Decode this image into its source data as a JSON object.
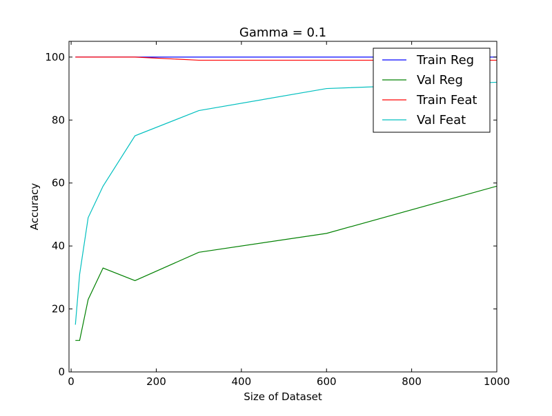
{
  "chart_data": {
    "type": "line",
    "title": "Gamma = 0.1",
    "xlabel": "Size of Dataset",
    "ylabel": "Accuracy",
    "xlim": [
      -5,
      1000
    ],
    "ylim": [
      0,
      105
    ],
    "xticks": [
      0,
      200,
      400,
      600,
      800,
      1000
    ],
    "yticks": [
      0,
      20,
      40,
      60,
      80,
      100
    ],
    "grid": false,
    "legend_position": "top-right",
    "series": [
      {
        "name": "Train Reg",
        "color": "#0000ff",
        "x": [
          10,
          20,
          40,
          75,
          150,
          300,
          600,
          1000
        ],
        "y": [
          100,
          100,
          100,
          100,
          100,
          100,
          100,
          100
        ]
      },
      {
        "name": "Val Reg",
        "color": "#008000",
        "x": [
          10,
          20,
          40,
          75,
          150,
          300,
          600,
          1000
        ],
        "y": [
          10,
          10,
          23,
          33,
          29,
          38,
          44,
          59
        ]
      },
      {
        "name": "Train Feat",
        "color": "#ff0000",
        "x": [
          10,
          20,
          40,
          75,
          150,
          300,
          600,
          1000
        ],
        "y": [
          100,
          100,
          100,
          100,
          100,
          99,
          99,
          99
        ]
      },
      {
        "name": "Val Feat",
        "color": "#00bfbf",
        "x": [
          10,
          20,
          40,
          75,
          150,
          300,
          600,
          1000
        ],
        "y": [
          15,
          31,
          49,
          59,
          75,
          83,
          90,
          92
        ]
      }
    ]
  }
}
